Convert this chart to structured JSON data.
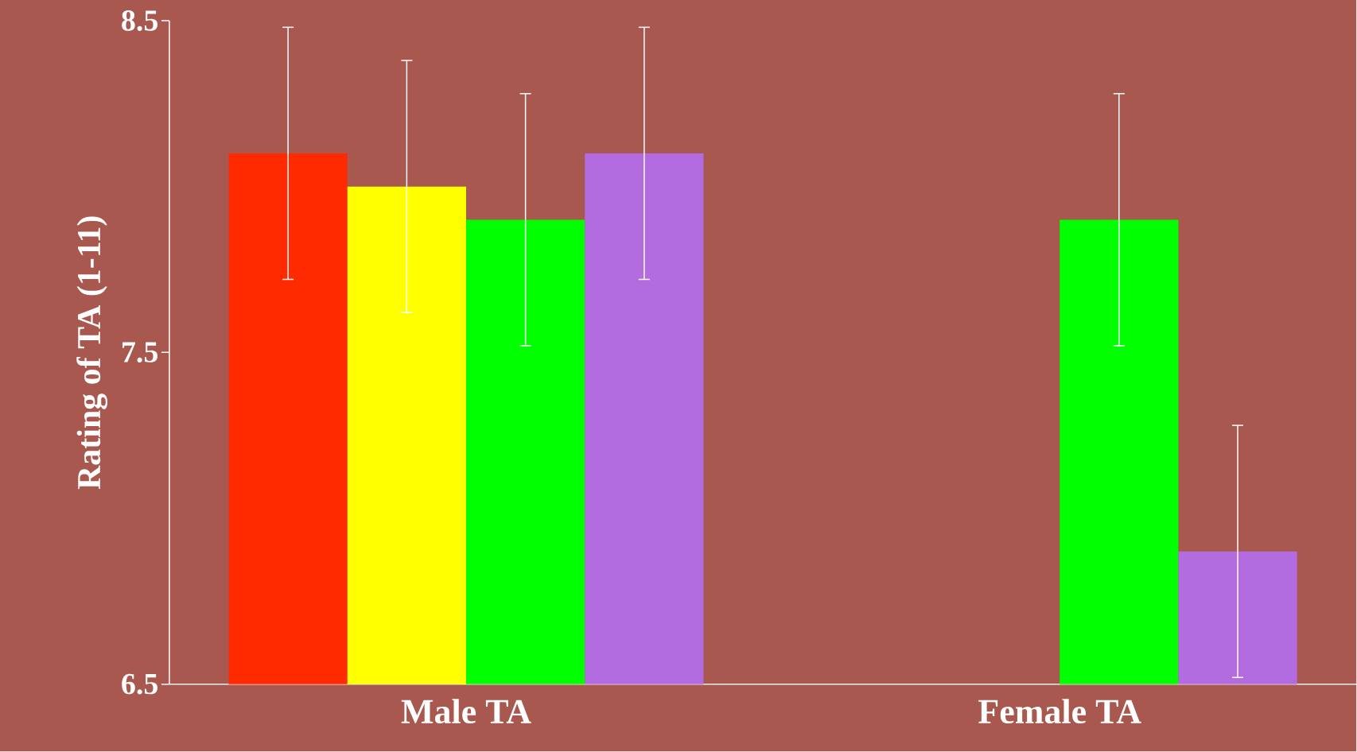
{
  "chart_data": {
    "type": "bar",
    "ylabel": "Rating of TA (1-11)",
    "categories": [
      "Male TA",
      "Female TA"
    ],
    "series": [
      {
        "color": "#ff2a00",
        "values": [
          8.1,
          null
        ],
        "errors": [
          0.38,
          null
        ]
      },
      {
        "color": "#ffff00",
        "values": [
          8.0,
          null
        ],
        "errors": [
          0.38,
          null
        ]
      },
      {
        "color": "#00ff00",
        "values": [
          7.9,
          7.9
        ],
        "errors": [
          0.38,
          0.38
        ]
      },
      {
        "color": "#b36be0",
        "values": [
          8.1,
          6.9
        ],
        "errors": [
          0.38,
          0.38
        ]
      }
    ],
    "ylim": [
      6.5,
      8.5
    ],
    "yticks": [
      6.5,
      7.5,
      8.5
    ],
    "grid": false
  }
}
